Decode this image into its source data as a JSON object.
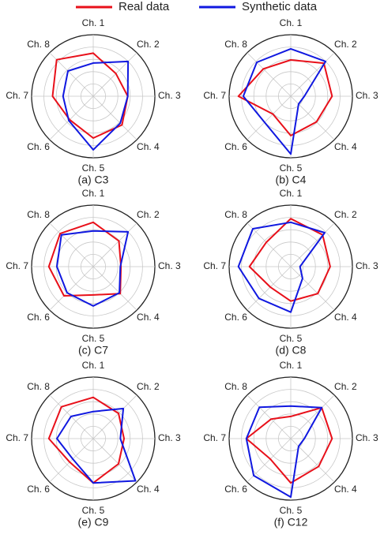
{
  "chart_data": [
    {
      "type": "radar",
      "title": "(a) C3",
      "categories": [
        "Ch. 1",
        "Ch. 2",
        "Ch. 3",
        "Ch. 4",
        "Ch. 5",
        "Ch. 6",
        "Ch. 7",
        "Ch. 8"
      ],
      "rlim": [
        0,
        1
      ],
      "rticks": [
        0.2,
        0.4,
        0.6,
        0.8,
        1
      ],
      "grid": true,
      "series": [
        {
          "name": "Real data",
          "color": "#e8101a",
          "values": [
            0.7,
            0.52,
            0.56,
            0.66,
            0.68,
            0.54,
            0.66,
            0.84
          ]
        },
        {
          "name": "Synthetic data",
          "color": "#1018e0",
          "values": [
            0.54,
            0.8,
            0.56,
            0.62,
            0.87,
            0.56,
            0.49,
            0.58
          ]
        }
      ]
    },
    {
      "type": "radar",
      "title": "(b) C4",
      "categories": [
        "Ch. 1",
        "Ch. 2",
        "Ch. 3",
        "Ch. 4",
        "Ch. 5",
        "Ch. 6",
        "Ch. 7",
        "Ch. 8"
      ],
      "rlim": [
        0,
        1
      ],
      "rticks": [
        0.2,
        0.4,
        0.6,
        0.8,
        1
      ],
      "grid": true,
      "series": [
        {
          "color": "#e8101a",
          "values": [
            0.59,
            0.76,
            0.67,
            0.59,
            0.64,
            0.41,
            0.85,
            0.63
          ]
        },
        {
          "color": "#1018e0",
          "values": [
            0.77,
            0.8,
            0.22,
            0.18,
            0.94,
            0.6,
            0.77,
            0.78
          ]
        }
      ]
    },
    {
      "type": "radar",
      "title": "(c) C7",
      "categories": [
        "Ch. 1",
        "Ch. 2",
        "Ch. 3",
        "Ch. 4",
        "Ch. 5",
        "Ch. 6",
        "Ch. 7",
        "Ch. 8"
      ],
      "rlim": [
        0,
        1
      ],
      "rticks": [
        0.2,
        0.4,
        0.6,
        0.8,
        1
      ],
      "grid": true,
      "series": [
        {
          "color": "#e8101a",
          "values": [
            0.72,
            0.59,
            0.45,
            0.62,
            0.46,
            0.67,
            0.72,
            0.76
          ]
        },
        {
          "color": "#1018e0",
          "values": [
            0.58,
            0.8,
            0.44,
            0.6,
            0.64,
            0.6,
            0.59,
            0.73
          ]
        }
      ]
    },
    {
      "type": "radar",
      "title": "(d) C8",
      "categories": [
        "Ch. 1",
        "Ch. 2",
        "Ch. 3",
        "Ch. 4",
        "Ch. 5",
        "Ch. 6",
        "Ch. 7",
        "Ch. 8"
      ],
      "rlim": [
        0,
        1
      ],
      "rticks": [
        0.2,
        0.4,
        0.6,
        0.8,
        1
      ],
      "grid": true,
      "series": [
        {
          "color": "#e8101a",
          "values": [
            0.78,
            0.73,
            0.64,
            0.62,
            0.56,
            0.47,
            0.67,
            0.56
          ]
        },
        {
          "color": "#1018e0",
          "values": [
            0.72,
            0.78,
            0.15,
            0.27,
            0.74,
            0.73,
            0.85,
            0.87
          ]
        }
      ]
    },
    {
      "type": "radar",
      "title": "(e) C9",
      "categories": [
        "Ch. 1",
        "Ch. 2",
        "Ch. 3",
        "Ch. 4",
        "Ch. 5",
        "Ch. 6",
        "Ch. 7",
        "Ch. 8"
      ],
      "rlim": [
        0,
        1
      ],
      "rticks": [
        0.2,
        0.4,
        0.6,
        0.8,
        1
      ],
      "grid": true,
      "series": [
        {
          "color": "#e8101a",
          "values": [
            0.67,
            0.58,
            0.5,
            0.58,
            0.72,
            0.54,
            0.72,
            0.73
          ]
        },
        {
          "color": "#1018e0",
          "values": [
            0.44,
            0.69,
            0.44,
            0.97,
            0.72,
            0.47,
            0.59,
            0.51
          ]
        }
      ]
    },
    {
      "type": "radar",
      "title": "(f) C12",
      "categories": [
        "Ch. 1",
        "Ch. 2",
        "Ch. 3",
        "Ch. 4",
        "Ch. 5",
        "Ch. 6",
        "Ch. 7",
        "Ch. 8"
      ],
      "rlim": [
        0,
        1
      ],
      "rticks": [
        0.2,
        0.4,
        0.6,
        0.8,
        1
      ],
      "grid": true,
      "series": [
        {
          "color": "#e8101a",
          "values": [
            0.36,
            0.71,
            0.67,
            0.64,
            0.72,
            0.47,
            0.72,
            0.45
          ]
        },
        {
          "color": "#1018e0",
          "values": [
            0.53,
            0.71,
            0.22,
            0.18,
            0.95,
            0.85,
            0.72,
            0.72
          ]
        }
      ]
    }
  ]
}
